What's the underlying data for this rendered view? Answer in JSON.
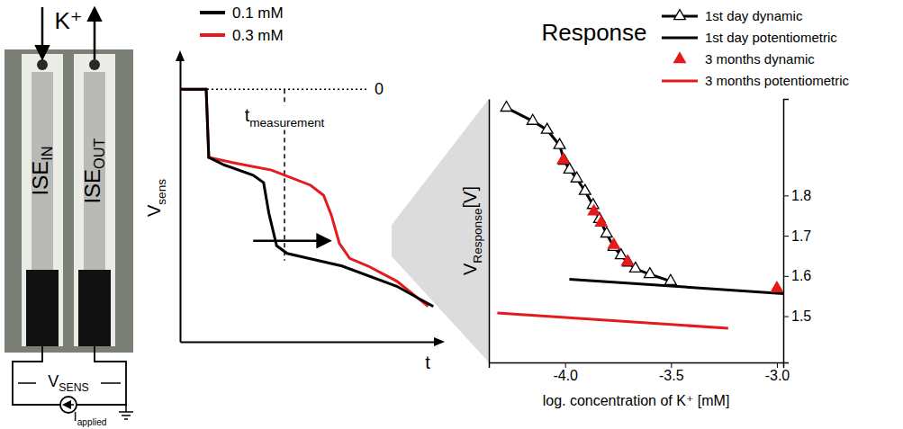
{
  "diagram": {
    "ion": "K⁺",
    "strip_labels": [
      [
        "ISE",
        "IN"
      ],
      [
        "ISE",
        "OUT"
      ]
    ],
    "circuit": {
      "voltage": [
        "V",
        "SENS"
      ],
      "current": [
        "I",
        "applied"
      ]
    }
  },
  "chart_data": [
    {
      "type": "line",
      "x_label": "t",
      "y_label": [
        "V",
        "sens"
      ],
      "xlim": [
        0,
        100
      ],
      "ylim": [
        -100,
        14
      ],
      "tick_labels": false,
      "legend": "top-left",
      "annotations": [
        {
          "text": "0",
          "y": 0
        }
      ],
      "measurement": {
        "label": [
          "t",
          "measurement"
        ],
        "x": 40,
        "shift_from": 28,
        "shift_to": 57,
        "shift_y": -60
      },
      "series": [
        {
          "name": "0.3 mM",
          "color": "#e41a1c",
          "line_style": "solid",
          "x": [
            0,
            10,
            11,
            20,
            35,
            50,
            55,
            58,
            61,
            65,
            72,
            83,
            95
          ],
          "values": [
            0,
            0,
            -27,
            -29,
            -32,
            -38,
            -42,
            -50,
            -61,
            -67,
            -70,
            -76,
            -86
          ]
        },
        {
          "name": "0.1 mM",
          "color": "#000000",
          "line_style": "solid",
          "x": [
            0,
            10,
            11,
            17,
            28,
            32,
            34,
            37,
            41,
            62,
            83,
            97
          ],
          "values": [
            0,
            0,
            -27,
            -30,
            -34,
            -37,
            -49,
            -62,
            -65,
            -70,
            -78,
            -86
          ]
        }
      ]
    },
    {
      "type": "line",
      "title": "Response",
      "x_label": "log. concentration of K⁺ [mM]",
      "y_label": [
        "V",
        "Response",
        "[V]"
      ],
      "xlim": [
        -4.36,
        -2.97
      ],
      "ylim": [
        1.385,
        2.04
      ],
      "xticks": [
        {
          "value": -4,
          "label": "-4.0"
        },
        {
          "value": -3.5,
          "label": "-3.5"
        },
        {
          "value": -3,
          "label": "-3.0"
        }
      ],
      "yticks": [
        1.5,
        1.6,
        1.7,
        1.8
      ],
      "legend": "top-right",
      "series": [
        {
          "name": "1st day dynamic",
          "color": "#000000",
          "marker": "triangle-open",
          "line_style": "solid",
          "x": [
            -4.277,
            -4.153,
            -4.085,
            -4.026,
            -4.004,
            -3.979,
            -3.945,
            -3.906,
            -3.868,
            -3.838,
            -3.804,
            -3.77,
            -3.736,
            -3.702,
            -3.668,
            -3.6,
            -3.502
          ],
          "values": [
            2.018,
            1.985,
            1.963,
            1.925,
            1.886,
            1.864,
            1.842,
            1.811,
            1.776,
            1.741,
            1.705,
            1.672,
            1.651,
            1.633,
            1.618,
            1.604,
            1.587
          ]
        },
        {
          "name": "1st day potentiometric",
          "color": "#000000",
          "line_style": "solid",
          "x": [
            -3.98,
            -2.97
          ],
          "values": [
            1.592,
            1.556
          ]
        },
        {
          "name": "3 months dynamic",
          "color": "#e41a1c",
          "marker": "triangle",
          "line_style": "none",
          "x": [
            -4.009,
            -3.864,
            -3.83,
            -3.77,
            -3.706,
            -3.0
          ],
          "values": [
            1.888,
            1.76,
            1.732,
            1.677,
            1.635,
            1.569
          ]
        },
        {
          "name": "3 months potentiometric",
          "color": "#e41a1c",
          "line_style": "solid",
          "x": [
            -4.32,
            -3.23
          ],
          "values": [
            1.508,
            1.47
          ]
        }
      ]
    }
  ]
}
